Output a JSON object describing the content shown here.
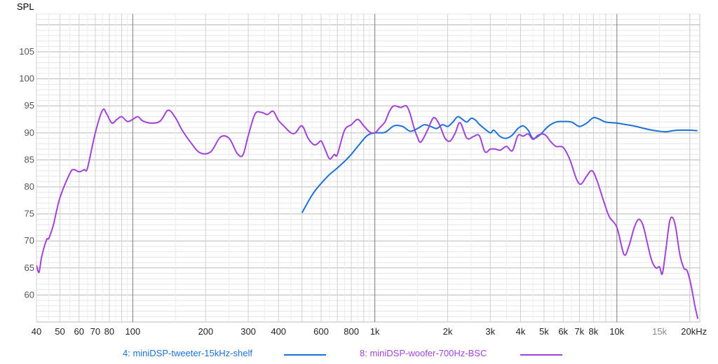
{
  "chart_data": {
    "type": "line",
    "ylabel": "SPL",
    "xscale": "log",
    "xlim": [
      40,
      22000
    ],
    "ylim": [
      55,
      112
    ],
    "grid": true,
    "legend_position": "bottom",
    "y_ticks": [
      {
        "value": 60,
        "label": "60"
      },
      {
        "value": 65,
        "label": "65"
      },
      {
        "value": 70,
        "label": "70"
      },
      {
        "value": 75,
        "label": "75"
      },
      {
        "value": 80,
        "label": "80"
      },
      {
        "value": 85,
        "label": "85"
      },
      {
        "value": 90,
        "label": "90"
      },
      {
        "value": 95,
        "label": "95"
      },
      {
        "value": 100,
        "label": "100"
      },
      {
        "value": 105,
        "label": "105"
      }
    ],
    "x_ticks": [
      {
        "value": 40,
        "label": "40"
      },
      {
        "value": 50,
        "label": "50"
      },
      {
        "value": 60,
        "label": "60"
      },
      {
        "value": 70,
        "label": "70"
      },
      {
        "value": 80,
        "label": "80"
      },
      {
        "value": 100,
        "label": "100"
      },
      {
        "value": 200,
        "label": "200"
      },
      {
        "value": 300,
        "label": "300"
      },
      {
        "value": 400,
        "label": "400"
      },
      {
        "value": 600,
        "label": "600"
      },
      {
        "value": 800,
        "label": "800"
      },
      {
        "value": 1000,
        "label": "1k"
      },
      {
        "value": 2000,
        "label": "2k"
      },
      {
        "value": 3000,
        "label": "3k"
      },
      {
        "value": 4000,
        "label": "4k"
      },
      {
        "value": 5000,
        "label": "5k"
      },
      {
        "value": 6000,
        "label": "6k"
      },
      {
        "value": 7000,
        "label": "7k"
      },
      {
        "value": 8000,
        "label": "8k"
      },
      {
        "value": 10000,
        "label": "10k"
      },
      {
        "value": 15000,
        "label": "15k"
      },
      {
        "value": 20000,
        "label": "20kHz"
      }
    ],
    "series": [
      {
        "name": "4: miniDSP-tweeter-15kHz-shelf",
        "color": "#1a72d6",
        "points": [
          [
            500,
            75.2
          ],
          [
            560,
            79.0
          ],
          [
            640,
            82.0
          ],
          [
            700,
            83.5
          ],
          [
            780,
            85.5
          ],
          [
            850,
            87.5
          ],
          [
            930,
            89.5
          ],
          [
            1000,
            90.0
          ],
          [
            1100,
            90.1
          ],
          [
            1200,
            91.3
          ],
          [
            1300,
            91.2
          ],
          [
            1400,
            90.3
          ],
          [
            1500,
            90.8
          ],
          [
            1600,
            91.5
          ],
          [
            1700,
            91.2
          ],
          [
            1800,
            90.8
          ],
          [
            1900,
            91.5
          ],
          [
            2000,
            91.2
          ],
          [
            2100,
            92.0
          ],
          [
            2200,
            93.0
          ],
          [
            2300,
            92.5
          ],
          [
            2400,
            92.0
          ],
          [
            2500,
            92.7
          ],
          [
            2600,
            92.4
          ],
          [
            2700,
            91.6
          ],
          [
            2800,
            91.0
          ],
          [
            3000,
            90.0
          ],
          [
            3100,
            90.5
          ],
          [
            3300,
            89.3
          ],
          [
            3500,
            89.0
          ],
          [
            3700,
            89.6
          ],
          [
            3900,
            90.8
          ],
          [
            4100,
            91.3
          ],
          [
            4300,
            90.5
          ],
          [
            4500,
            89.0
          ],
          [
            4800,
            89.6
          ],
          [
            5200,
            91.2
          ],
          [
            5600,
            92.0
          ],
          [
            6000,
            92.1
          ],
          [
            6500,
            92.0
          ],
          [
            7000,
            91.2
          ],
          [
            7500,
            91.8
          ],
          [
            8000,
            92.8
          ],
          [
            8500,
            92.5
          ],
          [
            9000,
            92.0
          ],
          [
            10000,
            91.8
          ],
          [
            11000,
            91.5
          ],
          [
            12000,
            91.2
          ],
          [
            13000,
            90.8
          ],
          [
            14000,
            90.5
          ],
          [
            15000,
            90.3
          ],
          [
            16000,
            90.2
          ],
          [
            17000,
            90.4
          ],
          [
            18000,
            90.5
          ],
          [
            20000,
            90.5
          ],
          [
            21500,
            90.4
          ]
        ]
      },
      {
        "name": "8: miniDSP-woofer-700Hz-BSC",
        "color": "#a143d9",
        "points": [
          [
            40,
            65.5
          ],
          [
            41,
            64.2
          ],
          [
            42,
            67.0
          ],
          [
            44,
            70.2
          ],
          [
            45,
            70.5
          ],
          [
            47,
            73.0
          ],
          [
            50,
            78.0
          ],
          [
            55,
            82.5
          ],
          [
            57,
            83.2
          ],
          [
            60,
            82.8
          ],
          [
            63,
            83.2
          ],
          [
            65,
            83.5
          ],
          [
            70,
            90.0
          ],
          [
            75,
            94.2
          ],
          [
            78,
            93.5
          ],
          [
            82,
            91.8
          ],
          [
            86,
            92.5
          ],
          [
            90,
            93.0
          ],
          [
            95,
            92.1
          ],
          [
            100,
            92.5
          ],
          [
            105,
            93.0
          ],
          [
            110,
            92.2
          ],
          [
            120,
            91.8
          ],
          [
            130,
            92.2
          ],
          [
            140,
            94.2
          ],
          [
            150,
            92.8
          ],
          [
            160,
            90.5
          ],
          [
            175,
            88.0
          ],
          [
            190,
            86.3
          ],
          [
            210,
            86.5
          ],
          [
            230,
            89.2
          ],
          [
            250,
            89.0
          ],
          [
            270,
            86.2
          ],
          [
            285,
            85.9
          ],
          [
            300,
            89.5
          ],
          [
            320,
            93.5
          ],
          [
            340,
            93.8
          ],
          [
            360,
            93.4
          ],
          [
            380,
            94.0
          ],
          [
            400,
            92.3
          ],
          [
            420,
            91.3
          ],
          [
            450,
            90.0
          ],
          [
            470,
            90.0
          ],
          [
            500,
            91.3
          ],
          [
            530,
            89.0
          ],
          [
            560,
            87.8
          ],
          [
            580,
            88.0
          ],
          [
            600,
            88.5
          ],
          [
            620,
            87.2
          ],
          [
            650,
            85.2
          ],
          [
            680,
            86.0
          ],
          [
            700,
            86.0
          ],
          [
            750,
            90.5
          ],
          [
            800,
            91.5
          ],
          [
            850,
            92.5
          ],
          [
            900,
            91.3
          ],
          [
            950,
            90.2
          ],
          [
            1000,
            90.0
          ],
          [
            1050,
            91.0
          ],
          [
            1100,
            92.0
          ],
          [
            1150,
            94.0
          ],
          [
            1200,
            95.0
          ],
          [
            1280,
            94.7
          ],
          [
            1350,
            95.0
          ],
          [
            1400,
            93.5
          ],
          [
            1450,
            91.0
          ],
          [
            1500,
            89.2
          ],
          [
            1550,
            88.3
          ],
          [
            1650,
            90.5
          ],
          [
            1750,
            92.8
          ],
          [
            1850,
            91.5
          ],
          [
            1950,
            89.0
          ],
          [
            2050,
            88.5
          ],
          [
            2150,
            90.0
          ],
          [
            2250,
            91.9
          ],
          [
            2400,
            89.0
          ],
          [
            2550,
            89.3
          ],
          [
            2700,
            89.5
          ],
          [
            2850,
            86.5
          ],
          [
            3000,
            87.0
          ],
          [
            3150,
            87.0
          ],
          [
            3300,
            86.8
          ],
          [
            3500,
            87.5
          ],
          [
            3700,
            86.7
          ],
          [
            3900,
            89.5
          ],
          [
            4100,
            89.4
          ],
          [
            4300,
            89.8
          ],
          [
            4500,
            88.8
          ],
          [
            4700,
            89.5
          ],
          [
            4900,
            89.8
          ],
          [
            5100,
            89.5
          ],
          [
            5300,
            88.5
          ],
          [
            5600,
            87.5
          ],
          [
            6000,
            87.3
          ],
          [
            6400,
            85.0
          ],
          [
            6800,
            81.5
          ],
          [
            7100,
            80.5
          ],
          [
            7500,
            82.0
          ],
          [
            7900,
            83.0
          ],
          [
            8300,
            81.0
          ],
          [
            8800,
            77.5
          ],
          [
            9300,
            74.5
          ],
          [
            10000,
            72.5
          ],
          [
            10700,
            67.5
          ],
          [
            11200,
            69.0
          ],
          [
            11800,
            72.5
          ],
          [
            12300,
            74.0
          ],
          [
            12800,
            73.0
          ],
          [
            13300,
            70.0
          ],
          [
            13900,
            66.5
          ],
          [
            14500,
            65.0
          ],
          [
            15000,
            65.2
          ],
          [
            15400,
            63.9
          ],
          [
            15900,
            68.0
          ],
          [
            16500,
            73.5
          ],
          [
            17000,
            74.3
          ],
          [
            17500,
            72.5
          ],
          [
            18200,
            67.5
          ],
          [
            18900,
            65.0
          ],
          [
            19500,
            64.5
          ],
          [
            20200,
            62.0
          ],
          [
            21000,
            58.0
          ],
          [
            21600,
            55.6
          ]
        ]
      }
    ]
  }
}
